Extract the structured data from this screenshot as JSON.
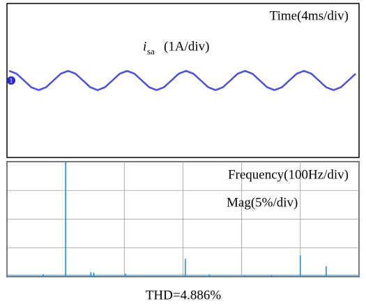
{
  "chart_data": [
    {
      "type": "line",
      "scale_label": "Time(4ms/div)",
      "signal_name": "i",
      "signal_subscript": "sa",
      "signal_scale": "(1A/div)",
      "channel_label": "1",
      "color": "#4b4fd6",
      "xlim": [
        0,
        40
      ],
      "ylim": [
        -4,
        4
      ],
      "x": [
        0.25,
        1.09,
        1.93,
        2.76,
        3.6,
        4.44,
        5.28,
        6.11,
        6.95,
        7.79,
        8.63,
        9.46,
        10.3,
        11.14,
        11.98,
        12.81,
        13.65,
        14.49,
        15.33,
        16.16,
        17.0,
        17.84,
        18.68,
        19.51,
        20.35,
        21.19,
        22.03,
        22.86,
        23.7,
        24.54,
        25.38,
        26.21,
        27.05,
        27.89,
        28.73,
        29.56,
        30.4,
        31.24,
        32.08,
        32.91,
        33.75,
        34.59,
        35.43,
        36.26,
        37.1,
        37.94,
        38.78,
        39.61
      ],
      "values": [
        0.5,
        0.35,
        0,
        -0.35,
        -0.5,
        -0.35,
        0,
        0.35,
        0.5,
        0.35,
        0,
        -0.35,
        -0.5,
        -0.35,
        0,
        0.35,
        0.5,
        0.35,
        0,
        -0.35,
        -0.5,
        -0.35,
        0,
        0.35,
        0.5,
        0.35,
        0,
        -0.35,
        -0.5,
        -0.35,
        0,
        0.35,
        0.5,
        0.35,
        0,
        -0.35,
        -0.5,
        -0.35,
        0,
        0.35,
        0.5,
        0.35,
        0,
        -0.35,
        -0.5,
        -0.35,
        0,
        0.35
      ]
    },
    {
      "type": "stem",
      "scale_label": "Frequency(100Hz/div)",
      "mag_label": "Mag(5%/div)",
      "color": "#1f8fd0",
      "xlim": [
        0,
        600
      ],
      "ylim": [
        0,
        20
      ],
      "xticks": [
        0,
        100,
        200,
        300,
        400,
        500,
        600
      ],
      "yticks": [
        0,
        5,
        10,
        15,
        20
      ],
      "grid": true,
      "x": [
        62,
        100,
        143,
        148,
        202,
        304,
        345,
        405,
        450,
        500,
        544
      ],
      "values": [
        0.4,
        20,
        0.8,
        0.7,
        0.5,
        3.1,
        0.4,
        0.3,
        0.3,
        3.7,
        1.8
      ]
    }
  ],
  "caption": "THD=4.886%"
}
